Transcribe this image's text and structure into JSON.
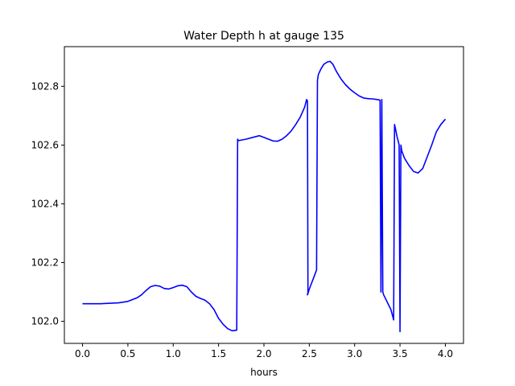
{
  "chart_data": {
    "type": "line",
    "title": "Water Depth h at gauge 135",
    "xlabel": "hours",
    "ylabel": "",
    "xlim": [
      -0.2,
      4.2
    ],
    "ylim": [
      101.925,
      102.935
    ],
    "xticks": [
      0.0,
      0.5,
      1.0,
      1.5,
      2.0,
      2.5,
      3.0,
      3.5,
      4.0
    ],
    "xtick_labels": [
      "0.0",
      "0.5",
      "1.0",
      "1.5",
      "2.0",
      "2.5",
      "3.0",
      "3.5",
      "4.0"
    ],
    "yticks": [
      102.0,
      102.2,
      102.4,
      102.6,
      102.8
    ],
    "ytick_labels": [
      "102.0",
      "102.2",
      "102.4",
      "102.6",
      "102.8"
    ],
    "grid": false,
    "legend": "none",
    "series": [
      {
        "color": "#0000ff",
        "x": [
          0.0,
          0.2,
          0.4,
          0.5,
          0.6,
          0.65,
          0.7,
          0.75,
          0.8,
          0.85,
          0.9,
          0.95,
          1.0,
          1.05,
          1.1,
          1.15,
          1.2,
          1.25,
          1.3,
          1.35,
          1.4,
          1.45,
          1.5,
          1.55,
          1.6,
          1.65,
          1.7,
          1.71,
          1.72,
          1.8,
          1.9,
          1.95,
          2.0,
          2.1,
          2.15,
          2.2,
          2.25,
          2.3,
          2.35,
          2.4,
          2.45,
          2.47,
          2.48,
          2.485,
          2.48,
          2.5,
          2.55,
          2.58,
          2.59,
          2.6,
          2.63,
          2.66,
          2.7,
          2.73,
          2.76,
          2.8,
          2.85,
          2.9,
          2.95,
          3.0,
          3.05,
          3.1,
          3.15,
          3.2,
          3.25,
          3.28,
          3.29,
          3.3,
          3.31,
          3.3,
          3.31,
          3.32,
          3.4,
          3.43,
          3.44,
          3.45,
          3.46,
          3.47,
          3.48,
          3.49,
          3.5,
          3.51,
          3.52,
          3.55,
          3.6,
          3.65,
          3.7,
          3.75,
          3.8,
          3.85,
          3.9,
          3.95,
          4.0
        ],
        "y": [
          102.06,
          102.06,
          102.063,
          102.068,
          102.08,
          102.09,
          102.105,
          102.118,
          102.122,
          102.12,
          102.112,
          102.11,
          102.115,
          102.121,
          102.123,
          102.118,
          102.1,
          102.085,
          102.078,
          102.072,
          102.06,
          102.04,
          102.01,
          101.99,
          101.975,
          101.968,
          101.97,
          102.62,
          102.615,
          102.62,
          102.628,
          102.632,
          102.626,
          102.614,
          102.613,
          102.62,
          102.632,
          102.648,
          102.67,
          102.695,
          102.73,
          102.755,
          102.75,
          102.1,
          102.09,
          102.11,
          102.15,
          102.175,
          102.82,
          102.84,
          102.86,
          102.875,
          102.883,
          102.885,
          102.875,
          102.85,
          102.825,
          102.805,
          102.79,
          102.778,
          102.767,
          102.76,
          102.758,
          102.757,
          102.755,
          102.753,
          102.1,
          102.755,
          102.105,
          102.75,
          102.1,
          102.09,
          102.04,
          102.005,
          102.67,
          102.655,
          102.64,
          102.625,
          102.615,
          102.6,
          101.965,
          102.6,
          102.58,
          102.555,
          102.53,
          102.51,
          102.505,
          102.52,
          102.56,
          102.6,
          102.645,
          102.67,
          102.688
        ]
      }
    ]
  }
}
